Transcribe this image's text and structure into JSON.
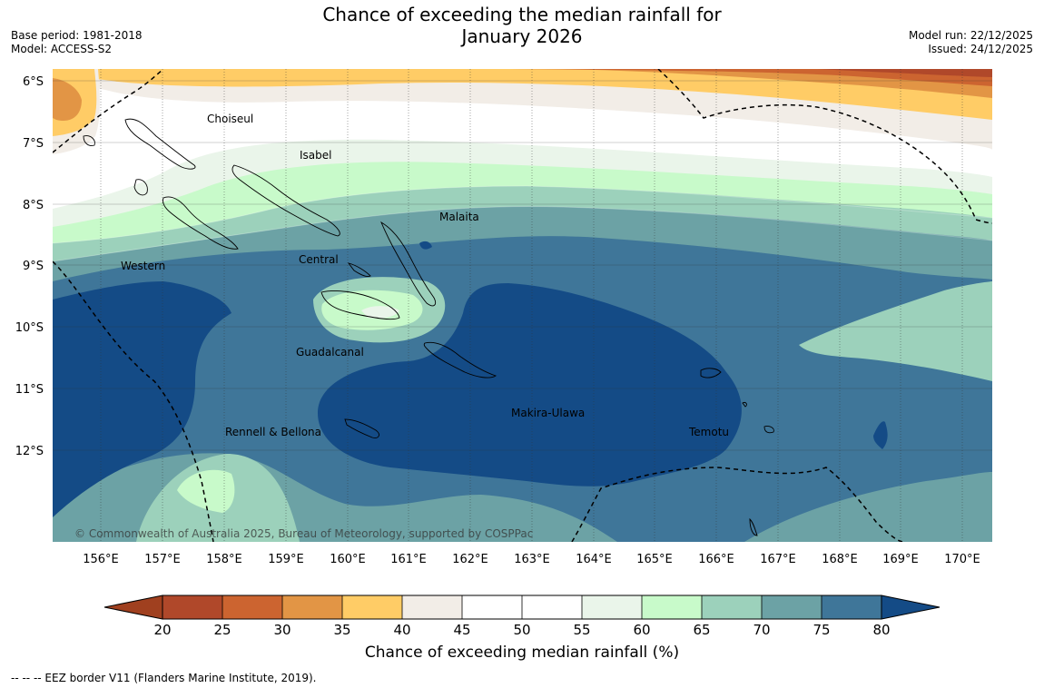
{
  "title": {
    "line1": "Chance of exceeding the median rainfall for",
    "line2": "January 2026"
  },
  "meta_left": {
    "base_period": "Base period: 1981-2018",
    "model": "Model: ACCESS-S2"
  },
  "meta_right": {
    "model_run": "Model run: 22/12/2025",
    "issued": "Issued: 24/12/2025"
  },
  "map": {
    "lat_labels": [
      "6°S",
      "7°S",
      "8°S",
      "9°S",
      "10°S",
      "11°S",
      "12°S"
    ],
    "lon_labels": [
      "156°E",
      "157°E",
      "158°E",
      "159°E",
      "160°E",
      "161°E",
      "162°E",
      "163°E",
      "164°E",
      "165°E",
      "166°E",
      "167°E",
      "168°E",
      "169°E",
      "170°E"
    ],
    "regions": {
      "choiseul": "Choiseul",
      "isabel": "Isabel",
      "malaita": "Malaita",
      "western": "Western",
      "central": "Central",
      "guadalcanal": "Guadalcanal",
      "makira": "Makira-Ulawa",
      "rennell": "Rennell & Bellona",
      "temotu": "Temotu"
    },
    "copyright": "© Commonwealth of Australia 2025, Bureau of Meteorology, supported by COSPPac"
  },
  "colorbar": {
    "ticks": [
      "20",
      "25",
      "30",
      "35",
      "40",
      "45",
      "50",
      "55",
      "60",
      "65",
      "70",
      "75",
      "80"
    ],
    "colors": {
      "under": "#A0401F",
      "b20_25": "#B0482A",
      "b25_30": "#CC6430",
      "b30_35": "#E29545",
      "b35_40": "#FFCC66",
      "b40_45": "#F2EDE7",
      "b45_50": "#FFFFFF",
      "b50_55": "#FFFFFF",
      "b55_60": "#EAF5EA",
      "b60_65": "#C8FACA",
      "b65_70": "#9CD1BB",
      "b70_75": "#6CA2A5",
      "b75_80": "#3F7699",
      "over": "#144B86"
    },
    "title": "Chance of exceeding median rainfall (%)"
  },
  "eez_note": "--  --  -- EEZ border V11 (Flanders Marine Institute, 2019)."
}
